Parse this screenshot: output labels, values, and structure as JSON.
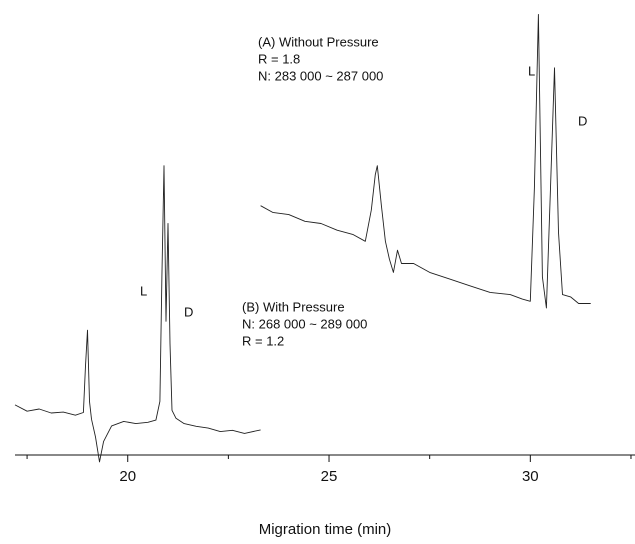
{
  "chart_data": {
    "type": "line",
    "x_label": "Migration time (min)",
    "xlim": [
      17.2,
      32.6
    ],
    "xticks": [
      20,
      25,
      30
    ],
    "xminor_ticks": [
      17.5,
      22.5,
      27.5,
      32.5
    ],
    "ylim": [
      -5,
      100
    ],
    "series": [
      {
        "color": "#222222",
        "x": [
          23.3,
          23.6,
          24.0,
          24.4,
          24.8,
          25.2,
          25.6,
          25.9,
          26.05,
          26.15,
          26.2,
          26.3,
          26.4,
          26.5,
          26.6,
          26.7,
          26.8,
          27.1,
          27.5,
          28.0,
          28.5,
          29.0,
          29.5,
          29.8,
          30.0,
          30.1,
          30.2,
          30.3,
          30.4,
          30.5,
          30.6,
          30.7,
          30.8,
          31.0,
          31.2,
          31.5
        ],
        "values": [
          56,
          54.5,
          54,
          52.5,
          52,
          50.5,
          49.5,
          48,
          55,
          63,
          65,
          56,
          48,
          44,
          41,
          46,
          43,
          43,
          41,
          39.5,
          38,
          36.5,
          36,
          35,
          34.5,
          60,
          99,
          40,
          33,
          60,
          87,
          50,
          36,
          35.5,
          34,
          34
        ]
      },
      {
        "color": "#222222",
        "x": [
          17.2,
          17.5,
          17.8,
          18.1,
          18.4,
          18.7,
          18.9,
          18.95,
          19.0,
          19.05,
          19.1,
          19.2,
          19.3,
          19.4,
          19.6,
          19.9,
          20.2,
          20.5,
          20.7,
          20.8,
          20.85,
          20.9,
          20.95,
          21.0,
          21.05,
          21.1,
          21.2,
          21.4,
          21.7,
          22.0,
          22.3,
          22.6,
          22.9,
          23.3
        ],
        "values": [
          11.2,
          9.8,
          10.3,
          9.4,
          9.6,
          8.9,
          9.5,
          20,
          28,
          12,
          8,
          4,
          -1.6,
          3,
          6.5,
          7.5,
          7.0,
          7.3,
          7.8,
          12,
          40,
          65,
          30,
          52,
          25,
          10,
          8.2,
          7.0,
          6.4,
          6.0,
          5.2,
          5.5,
          4.8,
          5.6
        ]
      }
    ],
    "annotations": {
      "a": [
        "(A) Without Pressure",
        "R = 1.8",
        "N: 283 000 ~ 287 000"
      ],
      "b": [
        "(B) With Pressure",
        "N: 268 000 ~ 289 000",
        "R = 1.2"
      ],
      "peaks": [
        "L",
        "D",
        "L",
        "D"
      ]
    }
  }
}
